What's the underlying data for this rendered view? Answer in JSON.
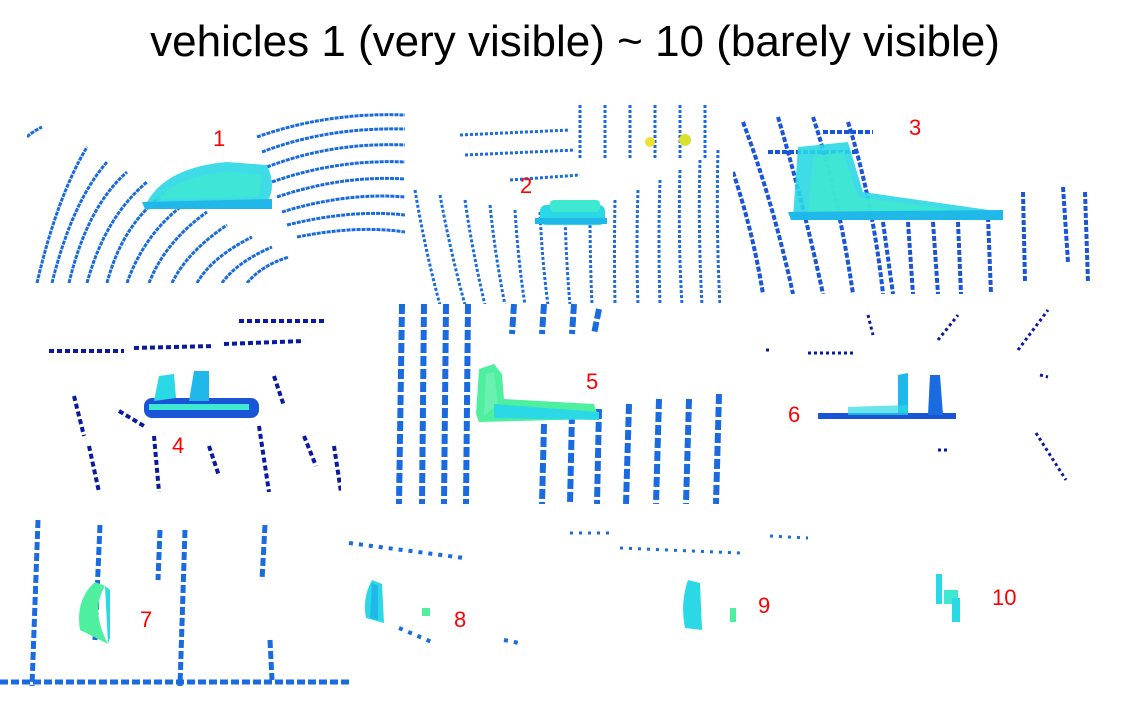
{
  "title": "vehicles 1 (very visible) ~ 10 (barely visible)",
  "labels": [
    "1",
    "2",
    "3",
    "4",
    "5",
    "6",
    "7",
    "8",
    "9",
    "10"
  ],
  "colors": {
    "scan_blue": "#1a6bdf",
    "dark_blue": "#0a1aa0",
    "vehicle_cyan": "#2ad8e6",
    "vehicle_light": "#3fe8d0",
    "vehicle_green": "#4ef0a0",
    "label_red": "#ff0000"
  }
}
